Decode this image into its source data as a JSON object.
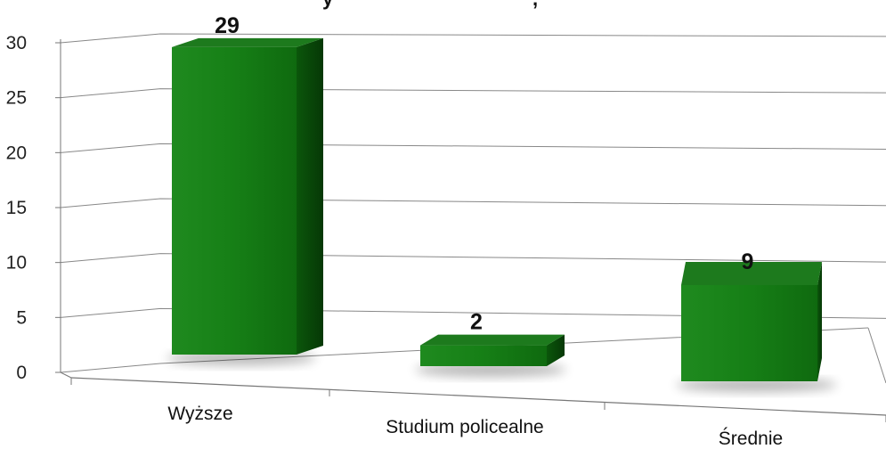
{
  "chart_data": {
    "type": "bar",
    "title": "",
    "xlabel": "",
    "ylabel": "",
    "categories": [
      "Wyższe",
      "Studium policealne",
      "Średnie"
    ],
    "values": [
      29,
      2,
      9
    ],
    "data_labels": [
      "29",
      "2",
      "9"
    ],
    "ylim": [
      0,
      30
    ],
    "y_ticks": [
      "0",
      "5",
      "10",
      "15",
      "20",
      "25",
      "30"
    ],
    "y_tick_values": [
      0,
      5,
      10,
      15,
      20,
      25,
      30
    ],
    "grid": true,
    "legend": "none",
    "style": "3d-perspective",
    "colors": {
      "bar_front": "#167f16",
      "bar_side": "#0a4a0a",
      "bar_top": "#1d7a1d",
      "grid": "#888888",
      "axis": "#777777"
    }
  }
}
